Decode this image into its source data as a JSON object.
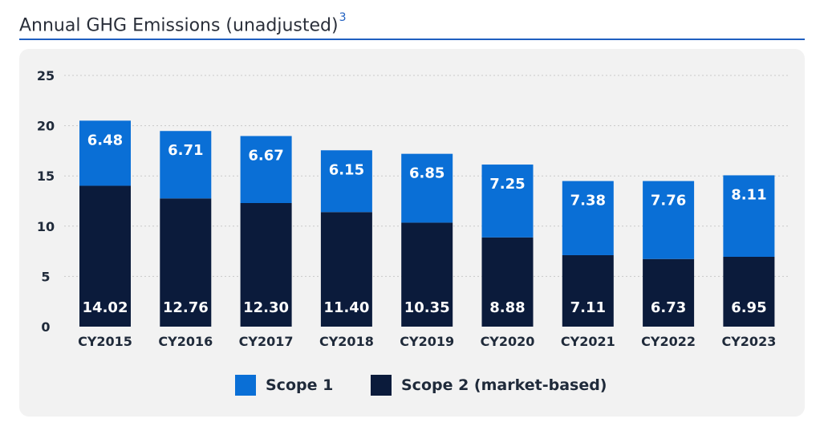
{
  "title": "Annual GHG Emissions (unadjusted)",
  "footnote": "3",
  "colors": {
    "scope1": "#0a6fd6",
    "scope2": "#0b1b3b",
    "grid": "#c9c9c9"
  },
  "chart_data": {
    "type": "bar",
    "stacked": true,
    "categories": [
      "CY2015",
      "CY2016",
      "CY2017",
      "CY2018",
      "CY2019",
      "CY2020",
      "CY2021",
      "CY2022",
      "CY2023"
    ],
    "series": [
      {
        "name": "Scope 2 (market-based)",
        "values": [
          14.02,
          12.76,
          12.3,
          11.4,
          10.35,
          8.88,
          7.11,
          6.73,
          6.95
        ]
      },
      {
        "name": "Scope 1",
        "values": [
          6.48,
          6.71,
          6.67,
          6.15,
          6.85,
          7.25,
          7.38,
          7.76,
          8.11
        ]
      }
    ],
    "value_labels": {
      "Scope 2 (market-based)": [
        "14.02",
        "12.76",
        "12.30",
        "11.40",
        "10.35",
        "8.88",
        "7.11",
        "6.73",
        "6.95"
      ],
      "Scope 1": [
        "6.48",
        "6.71",
        "6.67",
        "6.15",
        "6.85",
        "7.25",
        "7.38",
        "7.76",
        "8.11"
      ]
    },
    "ylim": [
      0,
      25
    ],
    "yticks": [
      "0",
      "5",
      "10",
      "15",
      "20",
      "25"
    ],
    "grid": true,
    "legend_position": "bottom"
  },
  "legend": [
    {
      "label": "Scope 1"
    },
    {
      "label": "Scope 2 (market-based)"
    }
  ]
}
